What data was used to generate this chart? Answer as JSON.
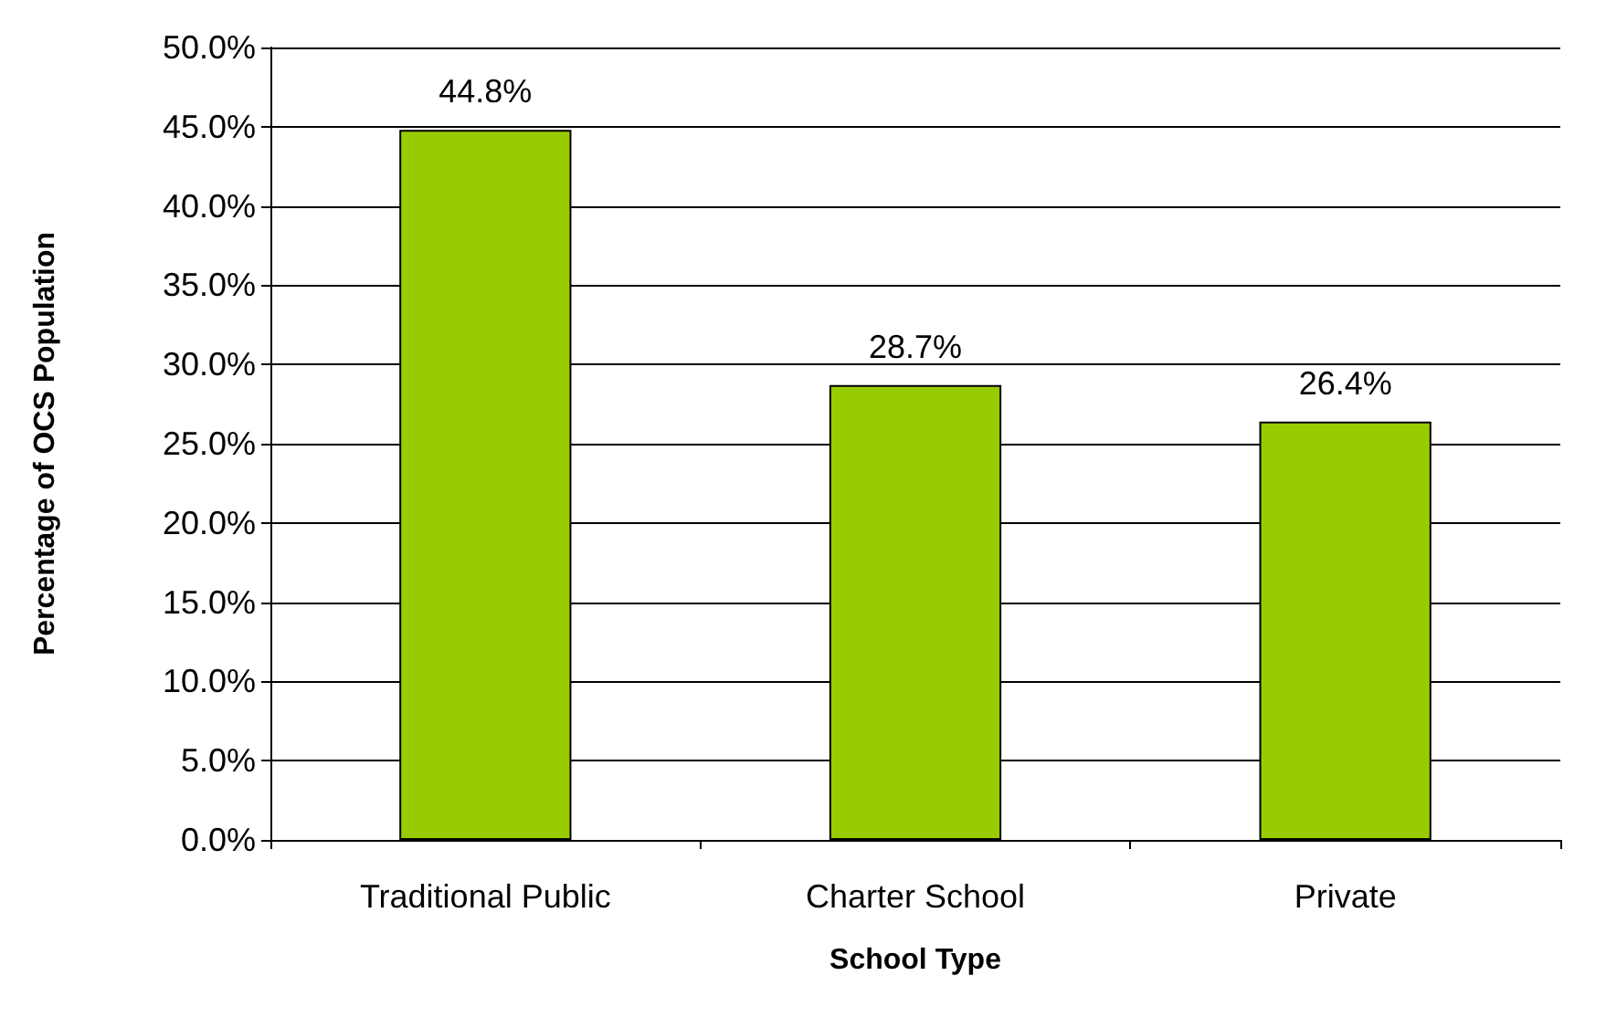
{
  "chart_data": {
    "type": "bar",
    "xlabel": "School Type",
    "ylabel": "Percentage of OCS Population",
    "categories": [
      "Traditional Public",
      "Charter School",
      "Private"
    ],
    "values": [
      44.8,
      28.7,
      26.4
    ],
    "color": "#99cc00",
    "value_labels": [
      "44.8%",
      "28.7%",
      "26.4%"
    ],
    "ylim": [
      0,
      50
    ],
    "yticks": [
      {
        "value": 0,
        "label": "0.0%"
      },
      {
        "value": 5,
        "label": "5.0%"
      },
      {
        "value": 10,
        "label": "10.0%"
      },
      {
        "value": 15,
        "label": "15.0%"
      },
      {
        "value": 20,
        "label": "20.0%"
      },
      {
        "value": 25,
        "label": "25.0%"
      },
      {
        "value": 30,
        "label": "30.0%"
      },
      {
        "value": 35,
        "label": "35.0%"
      },
      {
        "value": 40,
        "label": "40.0%"
      },
      {
        "value": 45,
        "label": "45.0%"
      },
      {
        "value": 50,
        "label": "50.0%"
      }
    ],
    "grid": "y"
  }
}
